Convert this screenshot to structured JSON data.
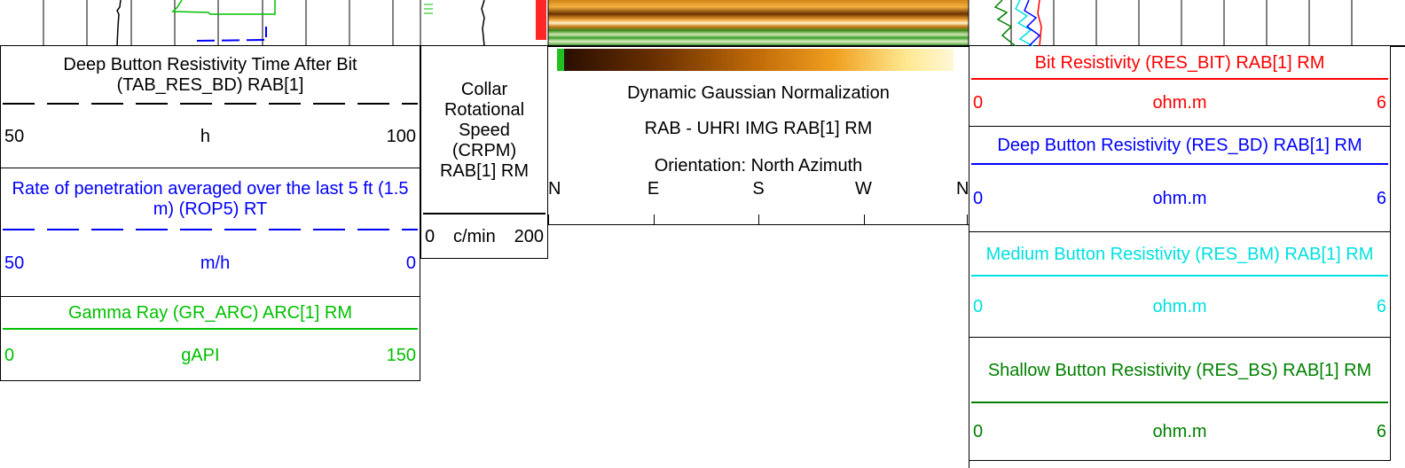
{
  "tracks": [
    {
      "curves": [
        {
          "title": "Deep Button Resistivity Time After Bit (TAB_RES_BD) RAB[1]",
          "color": "#000000",
          "line": "dashed",
          "scale": {
            "left": 50,
            "unit": "h",
            "right": 100
          }
        },
        {
          "title": "Rate of penetration averaged over the last 5 ft (1.5 m) (ROP5) RT",
          "color": "#0000ff",
          "line": "dashed",
          "scale": {
            "left": 50,
            "unit": "m/h",
            "right": 0
          }
        },
        {
          "title": "Gamma Ray (GR_ARC) ARC[1] RM",
          "color": "#00c000",
          "line": "solid",
          "scale": {
            "left": 0,
            "unit": "gAPI",
            "right": 150
          }
        }
      ]
    },
    {
      "curves": [
        {
          "title": "Collar Rotational Speed (CRPM) RAB[1] RM",
          "color": "#000000",
          "line": "solid",
          "scale": {
            "left": 0,
            "unit": "c/min",
            "right": 200
          }
        }
      ]
    },
    {
      "image": {
        "lines": [
          "Dynamic Gaussian Normalization",
          "RAB - UHRI IMG RAB[1] RM",
          "Orientation: North Azimuth"
        ],
        "orientation": [
          "N",
          "E",
          "S",
          "W",
          "N"
        ]
      }
    },
    {
      "curves": [
        {
          "title": "Bit Resistivity (RES_BIT) RAB[1] RM",
          "color": "#ff0000",
          "line": "solid",
          "scale": {
            "left": 0,
            "unit": "ohm.m",
            "right": 6
          }
        },
        {
          "title": "Deep Button Resistivity (RES_BD) RAB[1] RM",
          "color": "#0000ff",
          "line": "solid",
          "scale": {
            "left": 0,
            "unit": "ohm.m",
            "right": 6
          }
        },
        {
          "title": "Medium Button Resistivity (RES_BM) RAB[1] RM",
          "color": "#00e0e0",
          "line": "solid",
          "scale": {
            "left": 0,
            "unit": "ohm.m",
            "right": 6
          }
        },
        {
          "title": "Shallow Button Resistivity (RES_BS) RAB[1] RM",
          "color": "#008000",
          "line": "solid",
          "scale": {
            "left": 0,
            "unit": "ohm.m",
            "right": 6
          }
        }
      ]
    }
  ]
}
